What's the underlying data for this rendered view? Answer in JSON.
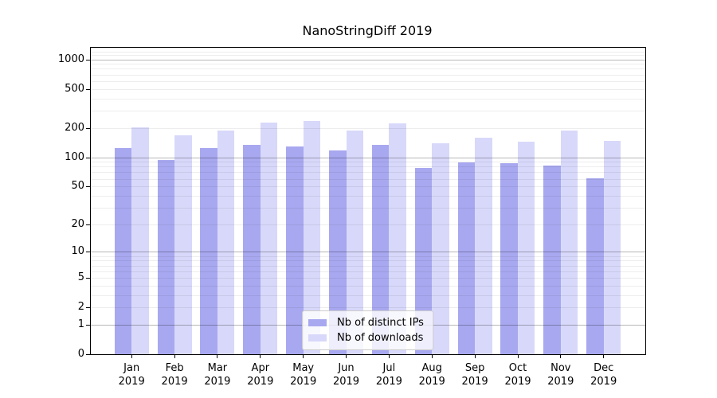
{
  "chart_data": {
    "type": "bar",
    "title": "NanoStringDiff 2019",
    "year": "2019",
    "categories": [
      "Jan",
      "Feb",
      "Mar",
      "Apr",
      "May",
      "Jun",
      "Jul",
      "Aug",
      "Sep",
      "Oct",
      "Nov",
      "Dec"
    ],
    "series": [
      {
        "name": "Nb of distinct IPs",
        "color": "#a8a8f0",
        "values": [
          125,
          93,
          124,
          134,
          128,
          117,
          134,
          78,
          88,
          87,
          82,
          61
        ]
      },
      {
        "name": "Nb of downloads",
        "color": "#d8d8fa",
        "values": [
          204,
          167,
          186,
          228,
          233,
          186,
          220,
          138,
          159,
          143,
          186,
          147
        ]
      }
    ],
    "yscale": "log10(value+1)",
    "yticks": [
      0,
      1,
      2,
      5,
      10,
      20,
      50,
      100,
      200,
      500,
      1000
    ],
    "ylim": [
      0,
      1310
    ],
    "major_gridlines": [
      1,
      10,
      100,
      1000
    ],
    "minor_gridlines": [
      2,
      3,
      4,
      5,
      6,
      7,
      8,
      9,
      20,
      30,
      40,
      50,
      60,
      70,
      80,
      90,
      200,
      300,
      400,
      500,
      600,
      700,
      800,
      900,
      1100,
      1200,
      1300
    ],
    "grid": true,
    "legend_position": "lower-center"
  }
}
